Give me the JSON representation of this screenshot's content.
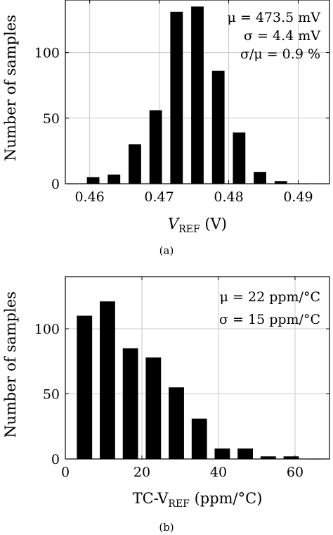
{
  "chart_data": [
    {
      "type": "bar",
      "caption": "(a)",
      "xlabel": "V_REF (V)",
      "xlabel_main": "V",
      "xlabel_sub": "REF",
      "xlabel_unit": " (V)",
      "ylabel": "Number of samples",
      "xlim": [
        0.4565,
        0.4945
      ],
      "ylim": [
        0,
        140
      ],
      "xticks": [
        0.46,
        0.47,
        0.48,
        0.49
      ],
      "xtick_labels": [
        "0.46",
        "0.47",
        "0.48",
        "0.49"
      ],
      "yticks": [
        0,
        50,
        100
      ],
      "ytick_labels": [
        "0",
        "50",
        "100"
      ],
      "bar_width": 0.0018,
      "grid": true,
      "x": [
        0.4575,
        0.4605,
        0.4635,
        0.4665,
        0.4695,
        0.4725,
        0.4755,
        0.4785,
        0.4815,
        0.4845,
        0.4875,
        0.4905
      ],
      "values": [
        0,
        5,
        7,
        30,
        56,
        131,
        135,
        86,
        39,
        9,
        2,
        0
      ],
      "annotations": [
        "μ = 473.5 mV",
        "σ = 4.4 mV",
        "σ/μ = 0.9 %"
      ]
    },
    {
      "type": "bar",
      "caption": "(b)",
      "xlabel": "TC-V_REF (ppm/°C)",
      "xlabel_main": "TC-V",
      "xlabel_sub": "REF",
      "xlabel_unit": " (ppm/°C)",
      "ylabel": "Number of samples",
      "xlim": [
        0,
        69
      ],
      "ylim": [
        0,
        140
      ],
      "xticks": [
        0,
        20,
        40,
        60
      ],
      "xtick_labels": [
        "0",
        "20",
        "40",
        "60"
      ],
      "yticks": [
        0,
        50,
        100
      ],
      "ytick_labels": [
        "0",
        "50",
        "100"
      ],
      "bar_width": 4,
      "grid": true,
      "x": [
        5,
        11,
        17,
        23,
        29,
        35,
        41,
        47,
        53,
        59,
        65
      ],
      "values": [
        110,
        121,
        85,
        78,
        55,
        31,
        8,
        8,
        2,
        2,
        0
      ],
      "annotations": [
        "μ = 22 ppm/°C",
        "σ = 15 ppm/°C"
      ]
    }
  ]
}
